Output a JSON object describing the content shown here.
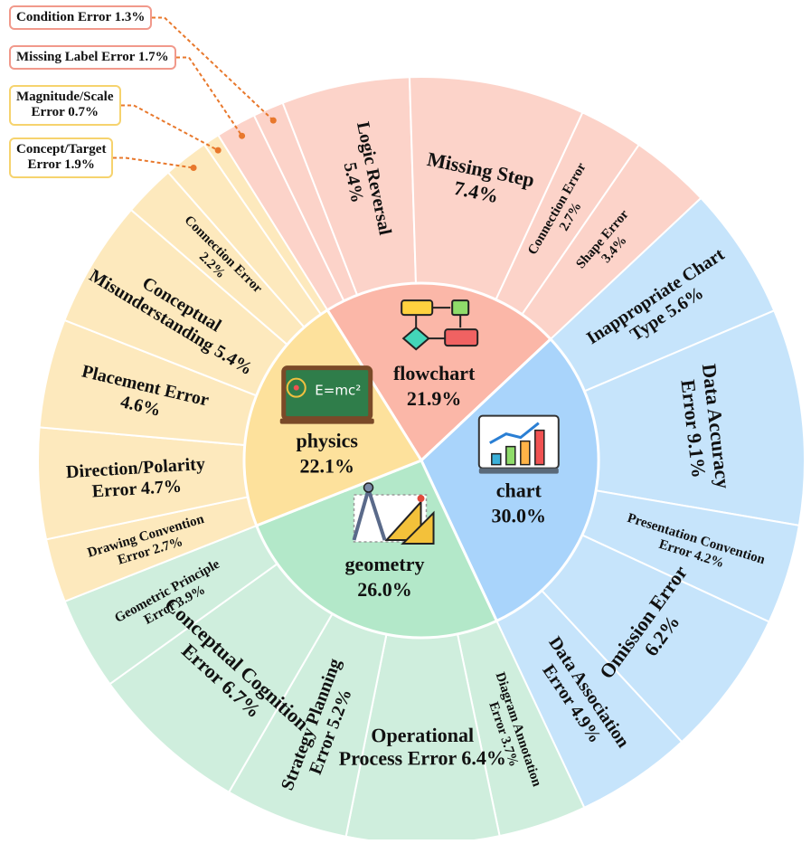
{
  "chart_data": {
    "type": "sunburst",
    "colors": {
      "flowchart": "#fbb7a8",
      "chart": "#a9d4fb",
      "geometry": "#b3e8c9",
      "physics": "#fde19c",
      "flowchart_outer": "#fcd3c9",
      "chart_outer": "#c6e4fb",
      "geometry_outer": "#cfeedd",
      "physics_outer": "#fde9bd",
      "flowchart_border": "#f1998b",
      "physics_border": "#f6d36e",
      "leader": "#e8782c"
    },
    "categories": [
      {
        "name": "flowchart",
        "value_label": "21.9%",
        "value": 21.9,
        "icon": "flowchart-icon",
        "children": [
          {
            "label": [
              "Missing Label Error 1.7%"
            ],
            "value": 1.7,
            "callout": true
          },
          {
            "label": [
              "Condition Error 1.3%"
            ],
            "value": 1.3,
            "callout": true
          },
          {
            "label": [
              "Logic Reversal",
              "5.4%"
            ],
            "value": 5.4
          },
          {
            "label": [
              "Missing Step",
              "7.4%"
            ],
            "value": 7.4
          },
          {
            "label": [
              "Connection Error",
              "2.7%"
            ],
            "value": 2.7
          },
          {
            "label": [
              "Shape Error",
              "3.4%"
            ],
            "value": 3.4
          }
        ]
      },
      {
        "name": "chart",
        "value_label": "30.0%",
        "value": 30.0,
        "icon": "bar-chart-icon",
        "children": [
          {
            "label": [
              "Inappropriate Chart",
              "Type 5.6%"
            ],
            "value": 5.6
          },
          {
            "label": [
              "Data Accuracy",
              "Error 9.1%"
            ],
            "value": 9.1
          },
          {
            "label": [
              "Presentation Convention",
              "Error 4.2%"
            ],
            "value": 4.2
          },
          {
            "label": [
              "Omission Error",
              "6.2%"
            ],
            "value": 6.2
          },
          {
            "label": [
              "Data Association",
              "Error 4.9%"
            ],
            "value": 4.9
          }
        ]
      },
      {
        "name": "geometry",
        "value_label": "26.0%",
        "value": 26.0,
        "icon": "compass-ruler-icon",
        "children": [
          {
            "label": [
              "Diagram Annotation",
              "Error 3.7%"
            ],
            "value": 3.7
          },
          {
            "label": [
              "Operational",
              "Process Error 6.4%"
            ],
            "value": 6.4
          },
          {
            "label": [
              "Strategy Planning",
              "Error 5.2%"
            ],
            "value": 5.2
          },
          {
            "label": [
              "Conceptual Cognition",
              "Error 6.7%"
            ],
            "value": 6.7
          },
          {
            "label": [
              "Geometric Principle",
              "Error 3.9%"
            ],
            "value": 3.9
          }
        ]
      },
      {
        "name": "physics",
        "value_label": "22.1%",
        "value": 22.1,
        "icon": "blackboard-icon",
        "blackboard_text": "E=mc²",
        "children": [
          {
            "label": [
              "Drawing Convention",
              "Error 2.7%"
            ],
            "value": 2.7
          },
          {
            "label": [
              "Direction/Polarity",
              "Error 4.7%"
            ],
            "value": 4.7
          },
          {
            "label": [
              "Placement Error",
              "4.6%"
            ],
            "value": 4.6
          },
          {
            "label": [
              "Conceptual",
              "Misunderstanding 5.4%"
            ],
            "value": 5.4
          },
          {
            "label": [
              "Connection Error",
              "2.2%"
            ],
            "value": 2.2
          },
          {
            "label": [
              "Concept/Target",
              "Error 1.9%"
            ],
            "value": 1.9,
            "callout": true
          },
          {
            "label": [
              "Magnitude/Scale",
              "Error 0.7%"
            ],
            "value": 0.7,
            "callout": true
          }
        ]
      }
    ]
  }
}
